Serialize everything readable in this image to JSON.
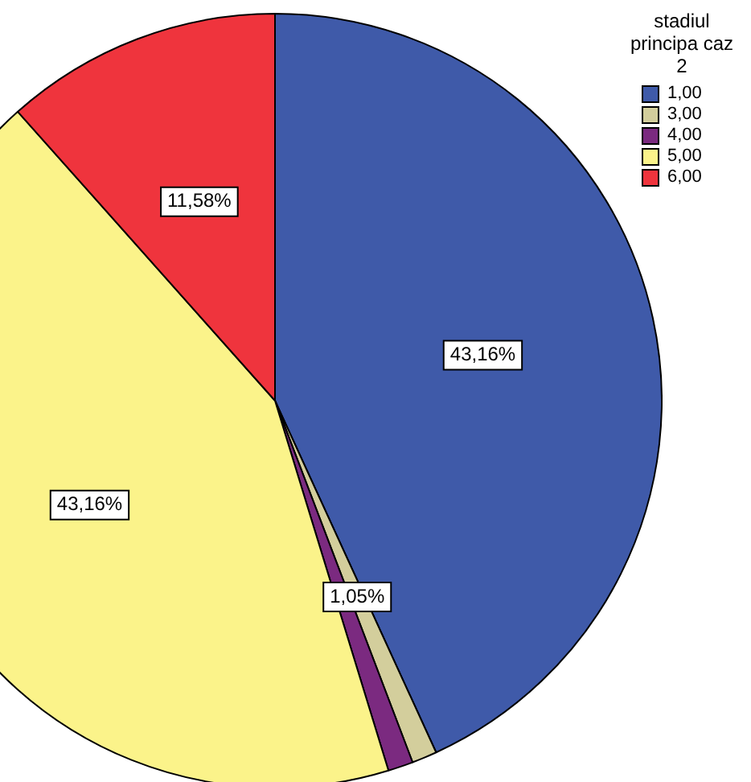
{
  "chart_data": {
    "type": "pie",
    "legend_title": "stadiul principa caz 2",
    "legend": "top right",
    "categories": [
      "1,00",
      "3,00",
      "4,00",
      "5,00",
      "6,00"
    ],
    "values": [
      43.16,
      1.05,
      1.05,
      43.16,
      11.58
    ],
    "colors": [
      "#3f5aa9",
      "#d3ce9c",
      "#7b2a80",
      "#fbf38a",
      "#ef343d"
    ],
    "value_labels": [
      "43,16%",
      "1,05%",
      null,
      "43,16%",
      "11,58%"
    ]
  }
}
